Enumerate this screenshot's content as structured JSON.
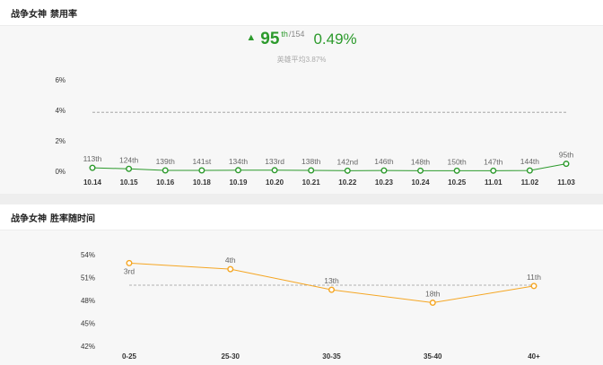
{
  "section1": {
    "title_hero": "战争女神",
    "title_metric": "禁用率",
    "summary": {
      "rank": "95",
      "rank_suffix": "th",
      "total": "/154",
      "rate": "0.49%",
      "average_note": "英雄平均3.87%"
    }
  },
  "section2": {
    "title_hero": "战争女神",
    "title_metric": "胜率随时间"
  },
  "colors": {
    "ban_line": "#2c9a2c",
    "win_line": "#f5a623",
    "average_line": "#999999",
    "axis_text": "#333333",
    "label_text": "#666666"
  },
  "chart_data": [
    {
      "type": "line",
      "name": "ban-rate-chart",
      "title": "战争女神 禁用率",
      "categories": [
        "10.14",
        "10.15",
        "10.16",
        "10.18",
        "10.19",
        "10.20",
        "10.21",
        "10.22",
        "10.23",
        "10.24",
        "10.25",
        "11.01",
        "11.02",
        "11.03"
      ],
      "values": [
        0.23,
        0.16,
        0.06,
        0.06,
        0.07,
        0.07,
        0.06,
        0.04,
        0.05,
        0.04,
        0.04,
        0.04,
        0.05,
        0.49
      ],
      "rank_labels": [
        "113th",
        "124th",
        "139th",
        "141st",
        "134th",
        "133rd",
        "138th",
        "142nd",
        "146th",
        "148th",
        "150th",
        "147th",
        "144th",
        "95th"
      ],
      "average": 3.87,
      "y_ticks": [
        "0%",
        "2%",
        "4%",
        "6%"
      ],
      "ylim": [
        0,
        6
      ],
      "unit": "%"
    },
    {
      "type": "line",
      "name": "win-rate-chart",
      "title": "战争女神 胜率随时间",
      "categories": [
        "0-25",
        "25-30",
        "30-35",
        "35-40",
        "40+"
      ],
      "values": [
        52.9,
        52.1,
        49.4,
        47.7,
        49.9
      ],
      "rank_labels": [
        "3rd",
        "4th",
        "13th",
        "18th",
        "11th"
      ],
      "average": 50.0,
      "y_ticks": [
        "42%",
        "45%",
        "48%",
        "51%",
        "54%"
      ],
      "ylim": [
        42,
        54
      ],
      "unit": "%"
    }
  ]
}
